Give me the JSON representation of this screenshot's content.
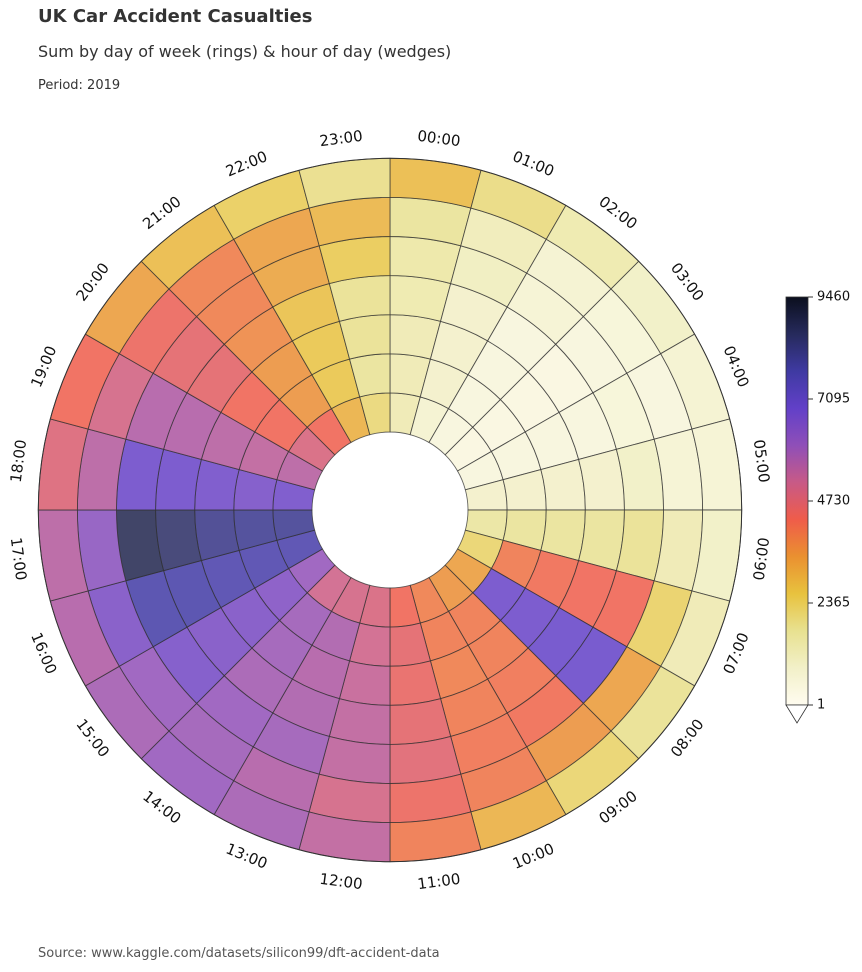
{
  "header": {
    "title": "UK Car Accident Casualties",
    "subtitle": "Sum by day of week (rings) & hour of day (wedges)",
    "period": "Period: 2019"
  },
  "footer": {
    "source": "Source: www.kaggle.com/datasets/silicon99/dft-accident-data"
  },
  "chart_data": {
    "type": "heatmap",
    "subtype": "radial",
    "hours": [
      "00:00",
      "01:00",
      "02:00",
      "03:00",
      "04:00",
      "05:00",
      "06:00",
      "07:00",
      "08:00",
      "09:00",
      "10:00",
      "11:00",
      "12:00",
      "13:00",
      "14:00",
      "15:00",
      "16:00",
      "17:00",
      "18:00",
      "19:00",
      "20:00",
      "21:00",
      "22:00",
      "23:00"
    ],
    "rings": 7,
    "values": [
      [
        1300,
        800,
        500,
        400,
        500,
        900,
        1600,
        2200,
        3300,
        3500,
        3900,
        4300,
        4900,
        5000,
        5100,
        6000,
        7600,
        8000,
        6700,
        5500,
        4900,
        4300,
        3000,
        2100
      ],
      [
        1300,
        900,
        500,
        400,
        500,
        900,
        1700,
        4000,
        6800,
        4000,
        4000,
        4600,
        5100,
        5700,
        5900,
        6400,
        7600,
        8000,
        6600,
        5400,
        4300,
        3500,
        2600,
        1700
      ],
      [
        1300,
        900,
        500,
        400,
        500,
        900,
        1700,
        4200,
        6800,
        4000,
        3900,
        4500,
        5300,
        5600,
        5900,
        6500,
        7600,
        8100,
        6700,
        5500,
        4300,
        3500,
        2600,
        1800
      ],
      [
        1400,
        900,
        500,
        400,
        500,
        900,
        1700,
        4300,
        6900,
        4100,
        4000,
        4600,
        5400,
        5700,
        5800,
        6500,
        7700,
        8500,
        6800,
        5600,
        4600,
        3700,
        2700,
        1800
      ],
      [
        1500,
        1100,
        700,
        500,
        600,
        1000,
        1800,
        4300,
        6900,
        4200,
        4100,
        4700,
        5400,
        5900,
        6000,
        6600,
        7700,
        8800,
        6800,
        5600,
        4600,
        3900,
        3200,
        2500
      ],
      [
        1700,
        1200,
        800,
        600,
        500,
        700,
        1300,
        2300,
        3300,
        3500,
        4000,
        4400,
        5000,
        5600,
        5900,
        6000,
        6500,
        6200,
        5500,
        5000,
        4400,
        3900,
        3300,
        2900
      ],
      [
        2800,
        2000,
        1400,
        1000,
        800,
        700,
        1000,
        1300,
        1800,
        2200,
        3000,
        4000,
        5400,
        5800,
        6000,
        5800,
        5600,
        5500,
        4800,
        4300,
        3300,
        2800,
        2400,
        1900
      ]
    ],
    "colorbar": {
      "ticks": [
        "9460",
        "7095",
        "4730",
        "2365",
        "1"
      ],
      "min": 1,
      "max": 9460,
      "stops": [
        "#fffcf0",
        "#f2f0c8",
        "#e8e190",
        "#e8c23e",
        "#ea9030",
        "#ef5c4a",
        "#c85a86",
        "#8f4fb8",
        "#6240c8",
        "#3f3aa2",
        "#262a5c",
        "#0b0f1e"
      ]
    }
  }
}
